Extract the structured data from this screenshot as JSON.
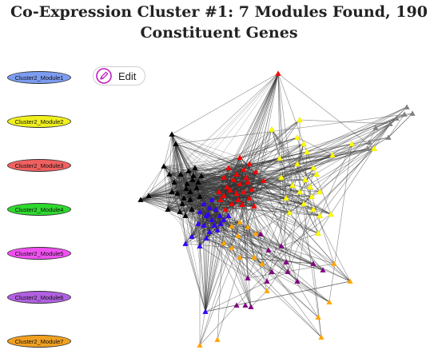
{
  "header": {
    "title_line1": "Co-Expression Cluster #1: 7 Modules Found, 190",
    "title_line2": "Constituent Genes"
  },
  "toolbar": {
    "edit_label": "Edit"
  },
  "legend": {
    "items": [
      {
        "label": "Cluster2_Module1",
        "color": "#7b9cf0"
      },
      {
        "label": "Cluster2_Module2",
        "color": "#f0f01e"
      },
      {
        "label": "Cluster2_Module3",
        "color": "#f06060"
      },
      {
        "label": "Cluster2_Module4",
        "color": "#2ed82e"
      },
      {
        "label": "Cluster2_Module5",
        "color": "#f050f0"
      },
      {
        "label": "Cluster2_Module6",
        "color": "#b060e0"
      },
      {
        "label": "Cluster2_Module7",
        "color": "#f0a020"
      }
    ]
  },
  "network": {
    "node_colors": {
      "black": "#000000",
      "red": "#ff0000",
      "blue": "#3300ff",
      "yellow": "#ffff00",
      "orange": "#ffa500",
      "purple": "#800080",
      "gray": "#808080"
    },
    "edge_color": "#333333"
  }
}
